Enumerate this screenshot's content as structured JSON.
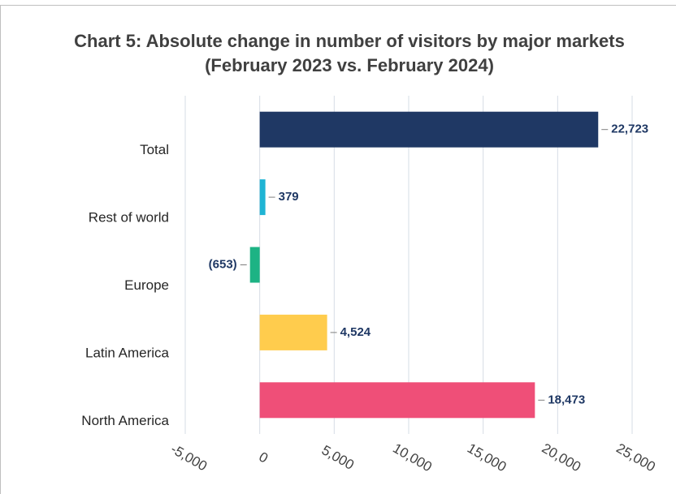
{
  "chart_data": {
    "type": "bar",
    "orientation": "horizontal",
    "title": "Chart 5: Absolute change in number of visitors by major markets",
    "subtitle": "(February 2023 vs. February 2024)",
    "categories": [
      "Total",
      "Rest of world",
      "Europe",
      "Latin America",
      "North America"
    ],
    "values": [
      22723,
      379,
      -653,
      4524,
      18473
    ],
    "value_labels": [
      "22,723",
      "379",
      "(653)",
      "4,524",
      "18,473"
    ],
    "colors": [
      "#1f3864",
      "#1fb4d4",
      "#1db384",
      "#ffcc4d",
      "#ef4f78"
    ],
    "xlim": [
      -5000,
      25000
    ],
    "xticks": [
      {
        "value": -5000,
        "label": "-5,000"
      },
      0,
      {
        "value": 5000,
        "label": "5,000"
      },
      {
        "value": 10000,
        "label": "10,000"
      },
      {
        "value": 15000,
        "label": "15,000"
      },
      {
        "value": 20000,
        "label": "20,000"
      },
      {
        "value": 25000,
        "label": "25,000"
      }
    ],
    "grid": true
  }
}
